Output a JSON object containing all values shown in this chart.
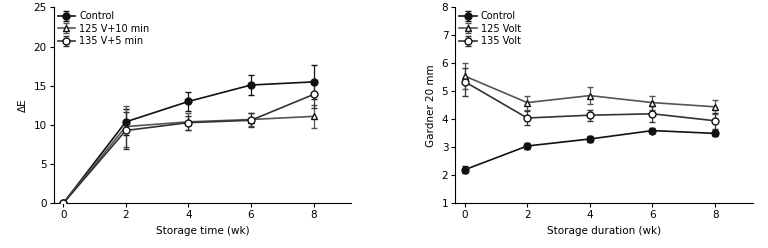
{
  "left": {
    "xlabel": "Storage time (wk)",
    "ylabel": "ΔE",
    "xlim": [
      -0.3,
      9.2
    ],
    "ylim": [
      0,
      25
    ],
    "yticks": [
      0,
      5,
      10,
      15,
      20,
      25
    ],
    "xticks": [
      0,
      2,
      4,
      6,
      8
    ],
    "series": [
      {
        "label": "Control",
        "x": [
          0,
          2,
          4,
          6,
          8
        ],
        "y": [
          0,
          10.4,
          13.0,
          15.1,
          15.5
        ],
        "yerr": [
          0.001,
          1.7,
          1.2,
          1.3,
          2.2
        ],
        "marker": "o",
        "markerfacecolor": "#111111",
        "markeredgecolor": "#111111",
        "color": "#111111",
        "markersize": 5,
        "linewidth": 1.2
      },
      {
        "label": "125 V+10 min",
        "x": [
          0,
          2,
          4,
          6,
          8
        ],
        "y": [
          0,
          9.8,
          10.4,
          10.7,
          11.1
        ],
        "yerr": [
          0.001,
          2.6,
          1.1,
          0.8,
          1.5
        ],
        "marker": "^",
        "markerfacecolor": "white",
        "markeredgecolor": "#111111",
        "color": "#555555",
        "markersize": 5,
        "linewidth": 1.2
      },
      {
        "label": "135 V+5 min",
        "x": [
          0,
          2,
          4,
          6,
          8
        ],
        "y": [
          0,
          9.3,
          10.3,
          10.6,
          13.9
        ],
        "yerr": [
          0.001,
          2.3,
          0.9,
          0.9,
          1.7
        ],
        "marker": "o",
        "markerfacecolor": "white",
        "markeredgecolor": "#111111",
        "color": "#333333",
        "markersize": 5,
        "linewidth": 1.2
      }
    ]
  },
  "right": {
    "xlabel": "Storage duration (wk)",
    "ylabel": "Gardner 20 mm",
    "xlim": [
      -0.3,
      9.2
    ],
    "ylim": [
      1,
      8
    ],
    "yticks": [
      1,
      2,
      3,
      4,
      5,
      6,
      7,
      8
    ],
    "xticks": [
      0,
      2,
      4,
      6,
      8
    ],
    "series": [
      {
        "label": "Control",
        "x": [
          0,
          2,
          4,
          6,
          8
        ],
        "y": [
          2.2,
          3.05,
          3.3,
          3.6,
          3.5
        ],
        "yerr": [
          0.12,
          0.1,
          0.1,
          0.1,
          0.1
        ],
        "marker": "o",
        "markerfacecolor": "#111111",
        "markeredgecolor": "#111111",
        "color": "#111111",
        "markersize": 5,
        "linewidth": 1.2
      },
      {
        "label": "125 Volt",
        "x": [
          0,
          2,
          4,
          6,
          8
        ],
        "y": [
          5.55,
          4.6,
          4.85,
          4.6,
          4.45
        ],
        "yerr": [
          0.45,
          0.25,
          0.3,
          0.25,
          0.25
        ],
        "marker": "^",
        "markerfacecolor": "white",
        "markeredgecolor": "#111111",
        "color": "#555555",
        "markersize": 5,
        "linewidth": 1.2
      },
      {
        "label": "135 Volt",
        "x": [
          0,
          2,
          4,
          6,
          8
        ],
        "y": [
          5.35,
          4.05,
          4.15,
          4.2,
          3.95
        ],
        "yerr": [
          0.5,
          0.25,
          0.2,
          0.28,
          0.28
        ],
        "marker": "o",
        "markerfacecolor": "white",
        "markeredgecolor": "#111111",
        "color": "#333333",
        "markersize": 5,
        "linewidth": 1.2
      }
    ]
  },
  "background_color": "#ffffff",
  "font_size": 7.5,
  "legend_fontsize": 7.0
}
